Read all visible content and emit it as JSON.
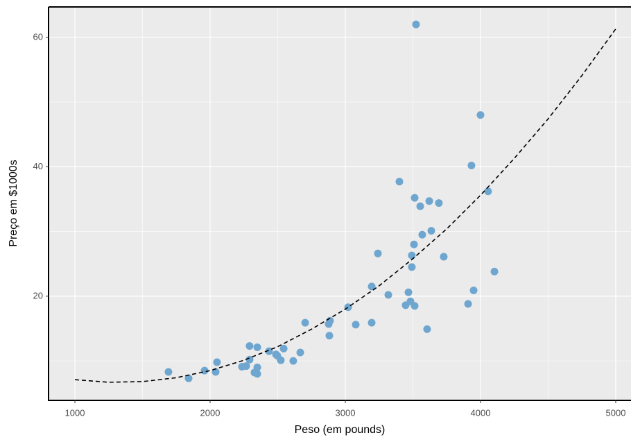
{
  "chart_data": {
    "type": "scatter",
    "x_label": "Peso (em pounds)",
    "y_label": "Preço em $1000s",
    "xlim": [
      805,
      5113
    ],
    "ylim": [
      3.9,
      64.7
    ],
    "xticks": [
      1000,
      2000,
      3000,
      4000,
      5000
    ],
    "yticks": [
      20,
      40,
      60
    ],
    "grid": true,
    "series": [
      {
        "type": "scatter",
        "color": "#6fa6cf",
        "x": [
          1692,
          1841,
          1959,
          2041,
          2051,
          2236,
          2267,
          2292,
          2292,
          2328,
          2349,
          2349,
          2349,
          2436,
          2487,
          2497,
          2523,
          2544,
          2615,
          2667,
          2703,
          2877,
          2887,
          2882,
          3021,
          3077,
          3195,
          3195,
          3241,
          3318,
          3400,
          3446,
          3467,
          3482,
          3492,
          3492,
          3508,
          3513,
          3513,
          3523,
          3554,
          3569,
          3605,
          3621,
          3636,
          3692,
          3728,
          3908,
          3933,
          3949,
          4000,
          4056,
          4103
        ],
        "values": [
          8.3,
          7.3,
          8.5,
          8.3,
          9.8,
          9.1,
          9.2,
          12.3,
          10.2,
          8.2,
          8.0,
          9.0,
          12.1,
          11.5,
          11.0,
          10.8,
          10.1,
          11.9,
          10.0,
          11.3,
          15.9,
          15.7,
          16.2,
          13.9,
          18.3,
          15.6,
          15.9,
          21.5,
          26.6,
          20.2,
          37.7,
          18.6,
          20.6,
          19.2,
          24.5,
          26.3,
          28.0,
          35.2,
          18.5,
          62.0,
          33.9,
          29.5,
          14.9,
          34.7,
          30.1,
          34.4,
          26.1,
          18.8,
          40.2,
          20.9,
          48.0,
          36.2,
          23.8
        ]
      },
      {
        "type": "line",
        "color": "#000000",
        "dashed": true,
        "x": [
          1000,
          1250,
          1500,
          1750,
          2000,
          2250,
          2500,
          2750,
          3000,
          3250,
          3500,
          3750,
          4000,
          4250,
          4500,
          4750,
          5000
        ],
        "values": [
          7.1,
          6.7,
          6.8,
          7.4,
          8.5,
          10.1,
          12.2,
          14.9,
          18.0,
          21.6,
          25.8,
          30.4,
          35.6,
          41.3,
          47.4,
          54.1,
          61.3
        ]
      }
    ]
  }
}
